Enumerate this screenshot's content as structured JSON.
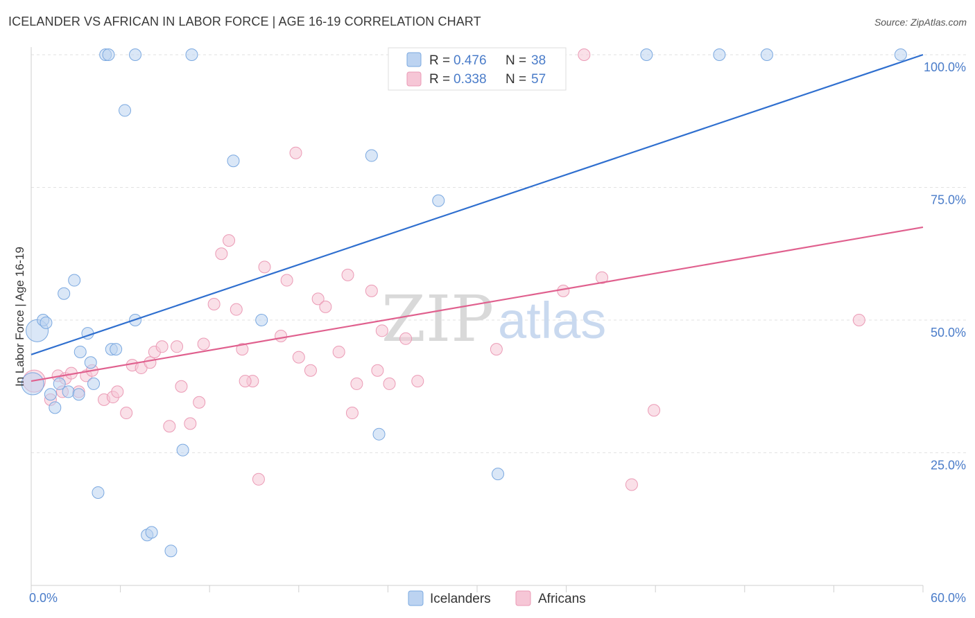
{
  "header": {
    "title": "ICELANDER VS AFRICAN IN LABOR FORCE | AGE 16-19 CORRELATION CHART",
    "source": "Source: ZipAtlas.com"
  },
  "watermark": {
    "part1": "ZIP",
    "part2": "atlas"
  },
  "chart_data": {
    "type": "scatter",
    "title": "ICELANDER VS AFRICAN IN LABOR FORCE | AGE 16-19 CORRELATION CHART",
    "xlabel": "",
    "ylabel": "In Labor Force | Age 16-19",
    "xlim": [
      0,
      60
    ],
    "ylim": [
      0,
      100
    ],
    "x_tick_labels": {
      "min": "0.0%",
      "max": "60.0%"
    },
    "y_tick_labels": [
      {
        "value": 100,
        "label": "100.0%"
      },
      {
        "value": 75,
        "label": "75.0%"
      },
      {
        "value": 50,
        "label": "50.0%"
      },
      {
        "value": 25,
        "label": "25.0%"
      }
    ],
    "grid": true,
    "legend": {
      "placement": "top-center",
      "entries": [
        {
          "series": "Icelanders",
          "r_label": "R = ",
          "r_value": "0.476",
          "n_label": "N = ",
          "n_value": "38"
        },
        {
          "series": "Africans",
          "r_label": "R = ",
          "r_value": "0.338",
          "n_label": "N = ",
          "n_value": "57"
        }
      ]
    },
    "series": [
      {
        "name": "Icelanders",
        "color": "#7aa8e0",
        "fill": "#bcd3f1",
        "line_color": "#2f6fcf",
        "trend": {
          "x": [
            0,
            60
          ],
          "y": [
            43.5,
            100
          ]
        },
        "points": [
          [
            0.1,
            38.0
          ],
          [
            0.4,
            48.0
          ],
          [
            0.8,
            50.0
          ],
          [
            1.0,
            49.5
          ],
          [
            1.3,
            36.0
          ],
          [
            1.6,
            33.5
          ],
          [
            1.9,
            38.0
          ],
          [
            2.2,
            55.0
          ],
          [
            2.9,
            57.5
          ],
          [
            2.5,
            36.5
          ],
          [
            3.2,
            36.0
          ],
          [
            3.3,
            44.0
          ],
          [
            3.8,
            47.5
          ],
          [
            4.0,
            42.0
          ],
          [
            4.2,
            38.0
          ],
          [
            4.5,
            17.5
          ],
          [
            5.0,
            100
          ],
          [
            5.2,
            100
          ],
          [
            5.4,
            44.5
          ],
          [
            5.7,
            44.5
          ],
          [
            6.3,
            89.5
          ],
          [
            7.0,
            100
          ],
          [
            7.0,
            50.0
          ],
          [
            7.8,
            9.5
          ],
          [
            8.1,
            10.0
          ],
          [
            9.4,
            6.5
          ],
          [
            10.2,
            25.5
          ],
          [
            10.8,
            100
          ],
          [
            13.6,
            80.0
          ],
          [
            15.5,
            50.0
          ],
          [
            22.9,
            81.0
          ],
          [
            23.4,
            28.5
          ],
          [
            27.4,
            72.5
          ],
          [
            31.4,
            21.0
          ],
          [
            41.4,
            100
          ],
          [
            46.3,
            100
          ],
          [
            49.5,
            100
          ],
          [
            58.5,
            100
          ]
        ]
      },
      {
        "name": "Africans",
        "color": "#eb9ab5",
        "fill": "#f6c6d6",
        "line_color": "#e0608e",
        "trend": {
          "x": [
            0,
            60
          ],
          "y": [
            38.5,
            67.5
          ]
        },
        "points": [
          [
            0.2,
            38.5
          ],
          [
            1.3,
            35.0
          ],
          [
            1.8,
            39.5
          ],
          [
            2.1,
            36.5
          ],
          [
            2.3,
            39.0
          ],
          [
            2.7,
            40.0
          ],
          [
            3.2,
            36.5
          ],
          [
            3.7,
            39.5
          ],
          [
            4.1,
            40.5
          ],
          [
            4.9,
            35.0
          ],
          [
            5.5,
            35.5
          ],
          [
            5.8,
            36.5
          ],
          [
            6.4,
            32.5
          ],
          [
            6.8,
            41.5
          ],
          [
            7.4,
            41.0
          ],
          [
            8.0,
            42.0
          ],
          [
            8.3,
            44.0
          ],
          [
            8.8,
            45.0
          ],
          [
            9.3,
            30.0
          ],
          [
            9.8,
            45.0
          ],
          [
            10.1,
            37.5
          ],
          [
            10.7,
            30.5
          ],
          [
            11.3,
            34.5
          ],
          [
            11.6,
            45.5
          ],
          [
            12.3,
            53.0
          ],
          [
            12.8,
            62.5
          ],
          [
            13.3,
            65.0
          ],
          [
            13.8,
            52.0
          ],
          [
            14.2,
            44.5
          ],
          [
            14.9,
            38.5
          ],
          [
            15.3,
            20.0
          ],
          [
            15.7,
            60.0
          ],
          [
            16.8,
            47.0
          ],
          [
            17.2,
            57.5
          ],
          [
            17.8,
            81.5
          ],
          [
            18.0,
            43.0
          ],
          [
            18.8,
            40.5
          ],
          [
            19.3,
            54.0
          ],
          [
            19.8,
            52.5
          ],
          [
            20.7,
            44.0
          ],
          [
            21.3,
            58.5
          ],
          [
            21.6,
            32.5
          ],
          [
            21.9,
            38.0
          ],
          [
            22.9,
            55.5
          ],
          [
            23.6,
            48.0
          ],
          [
            24.1,
            38.0
          ],
          [
            25.2,
            46.5
          ],
          [
            26.0,
            38.5
          ],
          [
            31.3,
            44.5
          ],
          [
            35.8,
            55.5
          ],
          [
            37.2,
            100
          ],
          [
            38.4,
            58.0
          ],
          [
            40.4,
            19.0
          ],
          [
            41.9,
            33.0
          ],
          [
            55.7,
            50.0
          ],
          [
            14.4,
            38.5
          ],
          [
            23.3,
            40.5
          ]
        ]
      }
    ]
  }
}
